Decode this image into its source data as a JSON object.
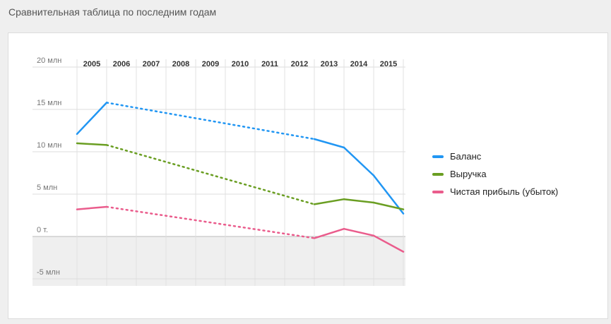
{
  "header": {
    "title": "Сравнительная таблица по последним годам"
  },
  "chart_data": {
    "type": "line",
    "title": "",
    "xlabel": "",
    "ylabel": "",
    "categories": [
      "2005",
      "2006",
      "2007",
      "2008",
      "2009",
      "2010",
      "2011",
      "2012",
      "2013",
      "2014",
      "2015"
    ],
    "y_ticks": [
      {
        "value": 20,
        "label": "20 млн"
      },
      {
        "value": 15,
        "label": "15 млн"
      },
      {
        "value": 10,
        "label": "10 млн"
      },
      {
        "value": 5,
        "label": "5 млн"
      },
      {
        "value": 0,
        "label": "0 т."
      },
      {
        "value": -5,
        "label": "-5 млн"
      }
    ],
    "ylim": [
      -5,
      20
    ],
    "y_unit": "млн",
    "x_position": "top",
    "grid": true,
    "legend_position": "right",
    "negative_area_fill": "#efefef",
    "note": "Dotted segments span years without data (2007–2012).",
    "series": [
      {
        "name": "Баланс",
        "color": "#2196f3",
        "points": [
          {
            "x": "2004",
            "y": 12.1
          },
          {
            "x": "2005",
            "y": 15.8
          },
          {
            "x": "2012",
            "y": 11.5
          },
          {
            "x": "2013",
            "y": 10.5
          },
          {
            "x": "2014",
            "y": 7.2
          },
          {
            "x": "2015",
            "y": 2.7
          }
        ]
      },
      {
        "name": "Выручка",
        "color": "#6a9e22",
        "points": [
          {
            "x": "2004",
            "y": 11.0
          },
          {
            "x": "2005",
            "y": 10.8
          },
          {
            "x": "2012",
            "y": 3.8
          },
          {
            "x": "2013",
            "y": 4.4
          },
          {
            "x": "2014",
            "y": 4.0
          },
          {
            "x": "2015",
            "y": 3.2
          }
        ]
      },
      {
        "name": "Чистая прибыль (убыток)",
        "color": "#ea5c8c",
        "points": [
          {
            "x": "2004",
            "y": 3.2
          },
          {
            "x": "2005",
            "y": 3.5
          },
          {
            "x": "2012",
            "y": -0.2
          },
          {
            "x": "2013",
            "y": 0.9
          },
          {
            "x": "2014",
            "y": 0.1
          },
          {
            "x": "2015",
            "y": -1.8
          }
        ]
      }
    ]
  }
}
